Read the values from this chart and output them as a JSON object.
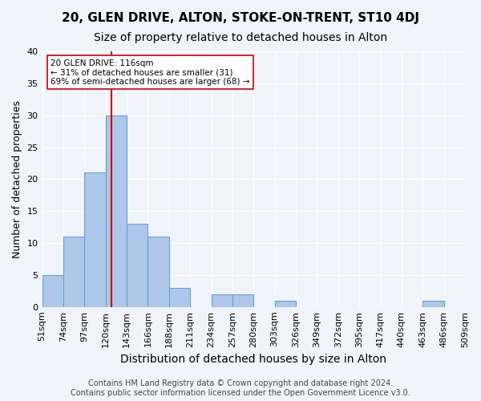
{
  "title": "20, GLEN DRIVE, ALTON, STOKE-ON-TRENT, ST10 4DJ",
  "subtitle": "Size of property relative to detached houses in Alton",
  "xlabel": "Distribution of detached houses by size in Alton",
  "ylabel": "Number of detached properties",
  "bar_labels": [
    "51sqm",
    "74sqm",
    "97sqm",
    "120sqm",
    "143sqm",
    "166sqm",
    "188sqm",
    "211sqm",
    "234sqm",
    "257sqm",
    "280sqm",
    "303sqm",
    "326sqm",
    "349sqm",
    "372sqm",
    "395sqm",
    "417sqm",
    "440sqm",
    "463sqm",
    "486sqm",
    "509sqm"
  ],
  "bar_values": [
    5,
    11,
    21,
    30,
    13,
    11,
    3,
    0,
    2,
    2,
    0,
    1,
    0,
    0,
    0,
    0,
    0,
    0,
    1,
    0
  ],
  "bar_color": "#aec6e8",
  "bar_edge_color": "#5b9bd5",
  "bar_width": 1.0,
  "ylim": [
    0,
    40
  ],
  "yticks": [
    0,
    5,
    10,
    15,
    20,
    25,
    30,
    35,
    40
  ],
  "vline_x": 2.78,
  "vline_color": "#cc0000",
  "annotation_text": "20 GLEN DRIVE: 116sqm\n← 31% of detached houses are smaller (31)\n69% of semi-detached houses are larger (68) →",
  "annotation_box_color": "#ffffff",
  "annotation_box_edgecolor": "#cc0000",
  "title_fontsize": 11,
  "subtitle_fontsize": 10,
  "xlabel_fontsize": 10,
  "ylabel_fontsize": 9,
  "tick_fontsize": 8,
  "footer_text": "Contains HM Land Registry data © Crown copyright and database right 2024.\nContains public sector information licensed under the Open Government Licence v3.0.",
  "footer_fontsize": 7,
  "background_color": "#f0f4fa",
  "grid_color": "#ffffff"
}
